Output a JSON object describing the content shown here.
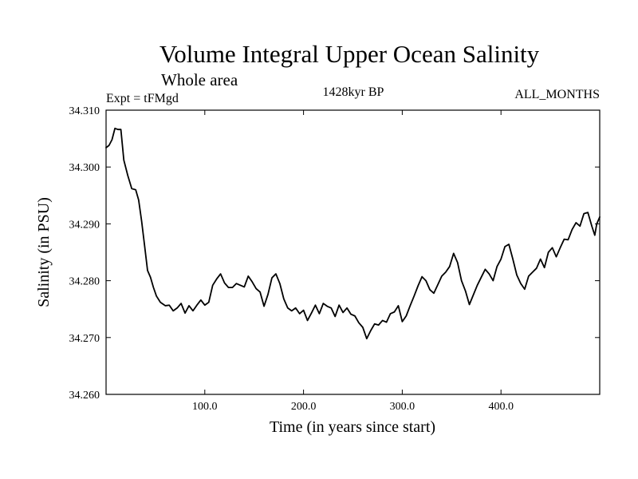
{
  "chart_data": {
    "type": "line",
    "title": "Volume Integral Upper Ocean Salinity",
    "subtitle": "Whole area",
    "experiment": "Expt = tFMgd",
    "period": "1428kyr BP",
    "months": "ALL_MONTHS",
    "xlabel": "Time (in years since start)",
    "ylabel": "Salinity (in PSU)",
    "xlim": [
      0,
      500
    ],
    "ylim": [
      34.26,
      34.31
    ],
    "x_ticks": [
      100,
      200,
      300,
      400
    ],
    "x_tick_labels": [
      "100.0",
      "200.0",
      "300.0",
      "400.0"
    ],
    "y_ticks": [
      34.26,
      34.27,
      34.28,
      34.29,
      34.3,
      34.31
    ],
    "y_tick_labels": [
      "34.260",
      "34.270",
      "34.280",
      "34.290",
      "34.300",
      "34.310"
    ],
    "grid": false,
    "series": [
      {
        "name": "Salinity",
        "color": "#000000",
        "points": [
          [
            0,
            34.3034
          ],
          [
            3,
            34.3038
          ],
          [
            6,
            34.3048
          ],
          [
            9,
            34.3068
          ],
          [
            12,
            34.3066
          ],
          [
            15,
            34.3066
          ],
          [
            18,
            34.3012
          ],
          [
            22,
            34.2985
          ],
          [
            26,
            34.2962
          ],
          [
            30,
            34.296
          ],
          [
            33,
            34.2942
          ],
          [
            36,
            34.2905
          ],
          [
            39,
            34.2862
          ],
          [
            42,
            34.2818
          ],
          [
            45,
            34.2806
          ],
          [
            48,
            34.2788
          ],
          [
            51,
            34.2773
          ],
          [
            55,
            34.2762
          ],
          [
            60,
            34.2756
          ],
          [
            64,
            34.2757
          ],
          [
            68,
            34.2747
          ],
          [
            72,
            34.2752
          ],
          [
            76,
            34.276
          ],
          [
            80,
            34.2743
          ],
          [
            84,
            34.2756
          ],
          [
            88,
            34.2747
          ],
          [
            92,
            34.2757
          ],
          [
            96,
            34.2766
          ],
          [
            100,
            34.2757
          ],
          [
            104,
            34.2762
          ],
          [
            108,
            34.2792
          ],
          [
            112,
            34.2803
          ],
          [
            116,
            34.2812
          ],
          [
            120,
            34.2796
          ],
          [
            124,
            34.2788
          ],
          [
            128,
            34.2788
          ],
          [
            132,
            34.2795
          ],
          [
            136,
            34.2792
          ],
          [
            140,
            34.2789
          ],
          [
            144,
            34.2808
          ],
          [
            148,
            34.2798
          ],
          [
            152,
            34.2786
          ],
          [
            156,
            34.278
          ],
          [
            160,
            34.2755
          ],
          [
            164,
            34.2776
          ],
          [
            168,
            34.2805
          ],
          [
            172,
            34.2812
          ],
          [
            176,
            34.2795
          ],
          [
            180,
            34.2768
          ],
          [
            184,
            34.2752
          ],
          [
            188,
            34.2747
          ],
          [
            192,
            34.2752
          ],
          [
            196,
            34.2742
          ],
          [
            200,
            34.2748
          ],
          [
            204,
            34.273
          ],
          [
            208,
            34.2743
          ],
          [
            212,
            34.2757
          ],
          [
            216,
            34.2742
          ],
          [
            220,
            34.276
          ],
          [
            224,
            34.2755
          ],
          [
            228,
            34.2752
          ],
          [
            232,
            34.2737
          ],
          [
            236,
            34.2757
          ],
          [
            240,
            34.2744
          ],
          [
            244,
            34.2752
          ],
          [
            248,
            34.2741
          ],
          [
            252,
            34.2738
          ],
          [
            256,
            34.2726
          ],
          [
            260,
            34.2718
          ],
          [
            264,
            34.2698
          ],
          [
            268,
            34.2712
          ],
          [
            272,
            34.2724
          ],
          [
            276,
            34.2722
          ],
          [
            280,
            34.273
          ],
          [
            284,
            34.2727
          ],
          [
            288,
            34.2742
          ],
          [
            292,
            34.2745
          ],
          [
            296,
            34.2756
          ],
          [
            300,
            34.2728
          ],
          [
            304,
            34.2738
          ],
          [
            308,
            34.2756
          ],
          [
            312,
            34.2773
          ],
          [
            316,
            34.2791
          ],
          [
            320,
            34.2807
          ],
          [
            324,
            34.28
          ],
          [
            328,
            34.2784
          ],
          [
            332,
            34.2778
          ],
          [
            336,
            34.2793
          ],
          [
            340,
            34.2808
          ],
          [
            344,
            34.2815
          ],
          [
            348,
            34.2825
          ],
          [
            352,
            34.2848
          ],
          [
            356,
            34.2832
          ],
          [
            360,
            34.28
          ],
          [
            364,
            34.2782
          ],
          [
            368,
            34.2758
          ],
          [
            372,
            34.2775
          ],
          [
            376,
            34.2792
          ],
          [
            380,
            34.2806
          ],
          [
            384,
            34.282
          ],
          [
            388,
            34.2812
          ],
          [
            392,
            34.28
          ],
          [
            396,
            34.2825
          ],
          [
            400,
            34.2838
          ],
          [
            404,
            34.286
          ],
          [
            408,
            34.2864
          ],
          [
            412,
            34.2838
          ],
          [
            416,
            34.281
          ],
          [
            420,
            34.2795
          ],
          [
            424,
            34.2785
          ],
          [
            428,
            34.2808
          ],
          [
            432,
            34.2815
          ],
          [
            436,
            34.2822
          ],
          [
            440,
            34.2838
          ],
          [
            444,
            34.2823
          ],
          [
            448,
            34.285
          ],
          [
            452,
            34.2858
          ],
          [
            456,
            34.2842
          ],
          [
            460,
            34.2858
          ],
          [
            464,
            34.2873
          ],
          [
            468,
            34.2872
          ],
          [
            472,
            34.289
          ],
          [
            476,
            34.2902
          ],
          [
            480,
            34.2896
          ],
          [
            484,
            34.2918
          ],
          [
            488,
            34.292
          ],
          [
            492,
            34.2896
          ],
          [
            495,
            34.288
          ],
          [
            497,
            34.29
          ],
          [
            500,
            34.2912
          ]
        ]
      }
    ]
  }
}
